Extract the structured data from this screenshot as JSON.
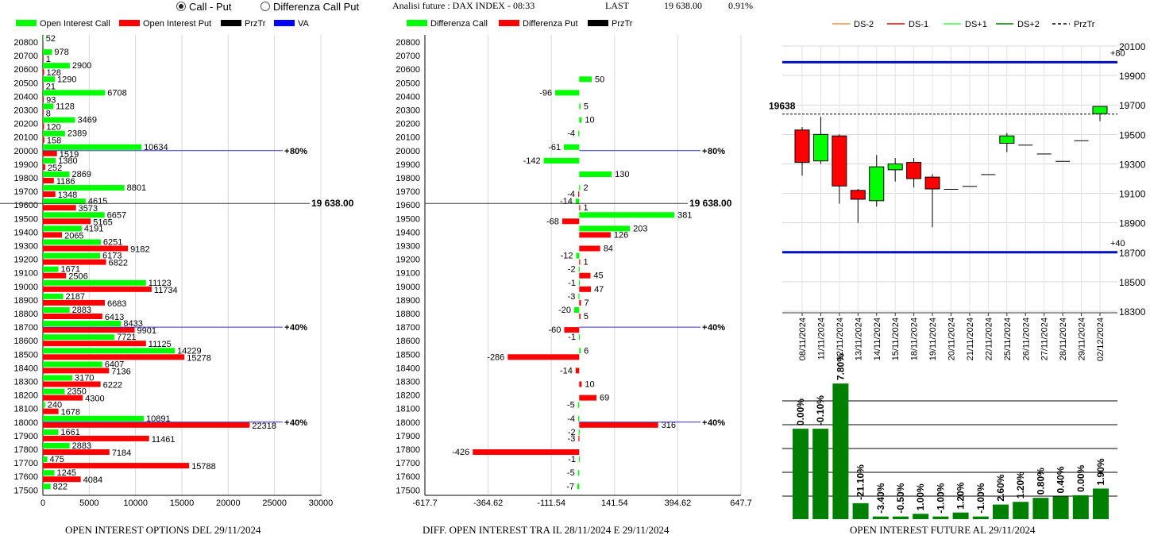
{
  "controls": {
    "radio_call_put": "Call - Put",
    "radio_diff": "Differenza Call Put",
    "call_put_selected": true
  },
  "header": {
    "title": "Analisi future : DAX INDEX - 08:33",
    "last_label": "LAST",
    "last_value": "19 638.00",
    "change": "0.91%"
  },
  "chart_data": [
    {
      "type": "bar",
      "orientation": "horizontal",
      "title": "OPEN INTEREST OPTIONS DEL 29/11/2024",
      "legend": [
        "Open Interest Call",
        "Open Interest Put",
        "PrzTr",
        "VA"
      ],
      "legend_colors": [
        "#00ff00",
        "#ff0000",
        "#000000",
        "#0000ff"
      ],
      "categories": [
        "20800",
        "20700",
        "20600",
        "20500",
        "20400",
        "20300",
        "20200",
        "20100",
        "20000",
        "19900",
        "19800",
        "19700",
        "19600",
        "19500",
        "19400",
        "19300",
        "19200",
        "19100",
        "19000",
        "18900",
        "18800",
        "18700",
        "18600",
        "18500",
        "18400",
        "18300",
        "18200",
        "18100",
        "18000",
        "17900",
        "17800",
        "17700",
        "17600",
        "17500"
      ],
      "series": [
        {
          "name": "Open Interest Call",
          "values": [
            52,
            978,
            2900,
            1290,
            6708,
            1128,
            3469,
            2389,
            10634,
            1380,
            2869,
            8801,
            4615,
            6657,
            4191,
            6251,
            6173,
            1671,
            11123,
            2187,
            2883,
            8433,
            7721,
            14229,
            6407,
            3170,
            2350,
            240,
            10891,
            1661,
            2883,
            475,
            1245,
            822
          ]
        },
        {
          "name": "Open Interest Put",
          "values": [
            null,
            1,
            128,
            21,
            93,
            8,
            120,
            158,
            1519,
            252,
            1186,
            1348,
            3573,
            5165,
            2065,
            9182,
            6822,
            2506,
            11734,
            6683,
            6413,
            9901,
            11125,
            15278,
            7136,
            6222,
            4300,
            1678,
            22318,
            11461,
            7184,
            15788,
            4084,
            null
          ]
        }
      ],
      "xticks": [
        "0",
        "5000",
        "10000",
        "15000",
        "20000",
        "25000",
        "30000"
      ],
      "xlim": [
        0,
        30000
      ],
      "markers": [
        {
          "category": "20000",
          "label": "80%",
          "type": "VA"
        },
        {
          "category": "18700",
          "label": "40%",
          "type": "VA"
        },
        {
          "category": "18000",
          "label": "40%",
          "type": "VA"
        },
        {
          "category": "19600",
          "label": "19 638.00",
          "type": "PrzTr"
        }
      ]
    },
    {
      "type": "bar",
      "orientation": "horizontal",
      "title": "DIFF. OPEN INTEREST TRA IL 28/11/2024 E 29/11/2024",
      "legend": [
        "Differenza Call",
        "Differenza Put",
        "PrzTr"
      ],
      "legend_colors": [
        "#00ff00",
        "#ff0000",
        "#000000"
      ],
      "categories": [
        "20800",
        "20700",
        "20600",
        "20500",
        "20400",
        "20300",
        "20200",
        "20100",
        "20000",
        "19900",
        "19800",
        "19700",
        "19600",
        "19500",
        "19400",
        "19300",
        "19200",
        "19100",
        "19000",
        "18900",
        "18800",
        "18700",
        "18600",
        "18500",
        "18400",
        "18300",
        "18200",
        "18100",
        "18000",
        "17900",
        "17800",
        "17700",
        "17600",
        "17500"
      ],
      "series": [
        {
          "name": "Differenza Call",
          "values": [
            null,
            null,
            null,
            50,
            -96,
            5,
            10,
            -4,
            -61,
            -142,
            130,
            2,
            -14,
            381,
            203,
            null,
            -12,
            -2,
            -1,
            -3,
            -20,
            null,
            -1,
            6,
            null,
            null,
            null,
            -5,
            -4,
            -2,
            null,
            -1,
            -5,
            -7
          ]
        },
        {
          "name": "Differenza Put",
          "values": [
            null,
            null,
            null,
            null,
            null,
            null,
            null,
            null,
            null,
            null,
            null,
            -4,
            1,
            -68,
            126,
            84,
            1,
            45,
            47,
            7,
            5,
            -60,
            null,
            -286,
            -14,
            10,
            69,
            null,
            316,
            -3,
            -426,
            null,
            null,
            null
          ]
        }
      ],
      "xticks": [
        "-617.7",
        "-364.62",
        "-111.54",
        "141.54",
        "394.62",
        "647.7"
      ],
      "xlim": [
        -617.7,
        647.7
      ],
      "markers": [
        {
          "category": "20000",
          "label": "80%",
          "type": "VA"
        },
        {
          "category": "18700",
          "label": "40%",
          "type": "VA"
        },
        {
          "category": "18000",
          "label": "40%",
          "type": "VA"
        },
        {
          "category": "19600",
          "label": "19 638.00",
          "type": "PrzTr"
        }
      ]
    },
    {
      "type": "candlestick",
      "legend": [
        "DS-2",
        "DS-1",
        "DS+1",
        "DS+2",
        "PrzTr"
      ],
      "legend_colors": [
        "#ff8c40",
        "#ff0000",
        "#40ff40",
        "#008000",
        "#000000"
      ],
      "dates": [
        "08/11/2024",
        "11/11/2024",
        "12/11/2024",
        "13/11/2024",
        "14/11/2024",
        "15/11/2024",
        "18/11/2024",
        "19/11/2024",
        "20/11/2024",
        "21/11/2024",
        "22/11/2024",
        "25/11/2024",
        "26/11/2024",
        "27/11/2024",
        "28/11/2024",
        "29/11/2024",
        "02/12/2024"
      ],
      "ohlc": [
        [
          19530,
          19550,
          19220,
          19310
        ],
        [
          19320,
          19620,
          19300,
          19500
        ],
        [
          19490,
          19500,
          19030,
          19150
        ],
        [
          19120,
          19130,
          18900,
          19060
        ],
        [
          19050,
          19360,
          19010,
          19280
        ],
        [
          19260,
          19340,
          19180,
          19300
        ],
        [
          19310,
          19340,
          19140,
          19200
        ],
        [
          19210,
          19230,
          18870,
          19130
        ],
        [
          19130,
          19130,
          19130,
          19130
        ],
        [
          19150,
          19150,
          19150,
          19150
        ],
        [
          19230,
          19230,
          19230,
          19230
        ],
        [
          19440,
          19510,
          19380,
          19490
        ],
        [
          19430,
          19430,
          19430,
          19430
        ],
        [
          19370,
          19370,
          19370,
          19370
        ],
        [
          19320,
          19320,
          19320,
          19320
        ],
        [
          19460,
          19460,
          19460,
          19460
        ],
        [
          19640,
          19690,
          19590,
          19690
        ]
      ],
      "yticks": [
        "20100",
        "19900",
        "19700",
        "19500",
        "19300",
        "19100",
        "18900",
        "18700",
        "18500",
        "18300"
      ],
      "ylim": [
        18300,
        20100
      ],
      "levels": [
        {
          "value": 19990,
          "label": "+80"
        },
        {
          "value": 18700,
          "label": "+40"
        }
      ],
      "last_price": 19638,
      "last_price_label": "19638"
    },
    {
      "type": "bar",
      "title": "OPEN INTEREST FUTURE AL 29/11/2024",
      "values": [
        0.0,
        -0.1,
        7.8,
        -21.1,
        -3.4,
        -0.5,
        1.0,
        -1.0,
        1.2,
        -1.0,
        2.6,
        1.2,
        0.8,
        0.4,
        0.0,
        1.9
      ],
      "labels": [
        "0.00%",
        "-0.10%",
        "7.80%",
        "-21.10%",
        "-3.40%",
        "-0.50%",
        "1.00%",
        "-1.00%",
        "1.20%",
        "-1.00%",
        "2.60%",
        "1.20%",
        "0.80%",
        "0.40%",
        "0.00%",
        "1.90%"
      ],
      "relative_heights": [
        0.34,
        0.34,
        0.51,
        0.06,
        0.01,
        0.01,
        0.02,
        0.01,
        0.025,
        0.01,
        0.055,
        0.065,
        0.08,
        0.085,
        0.09,
        0.115
      ],
      "color": "#008000"
    }
  ]
}
